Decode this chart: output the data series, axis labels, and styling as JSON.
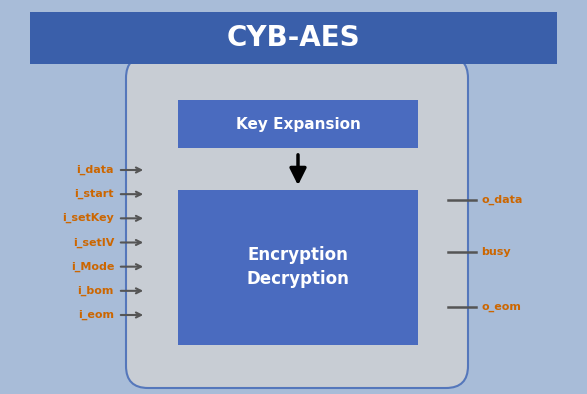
{
  "title": "CYB-AES",
  "title_bg": "#3a5faa",
  "title_color": "#ffffff",
  "bg_color": "#a8bcd8",
  "outer_box_color": "#c8cdd4",
  "inner_box_color": "#4a6bbf",
  "key_expansion_label": "Key Expansion",
  "enc_dec_label_1": "Encryption",
  "enc_dec_label_2": "Decryption",
  "input_signals": [
    "i_data",
    "i_start",
    "i_setKey",
    "i_setIV",
    "i_Mode",
    "i_bom",
    "i_eom"
  ],
  "output_signals": [
    "o_data",
    "busy",
    "o_eom"
  ],
  "signal_color": "#cc6600",
  "arrow_color": "#555555",
  "label_color": "#ffffff",
  "border_color": "#5577bb"
}
